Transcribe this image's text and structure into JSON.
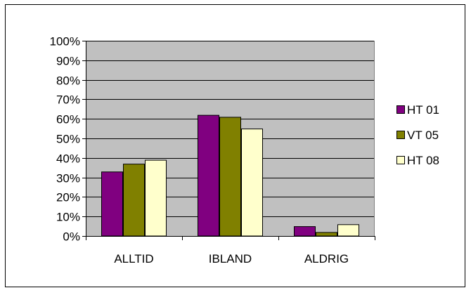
{
  "chart_data": {
    "type": "bar",
    "title": "",
    "xlabel": "",
    "ylabel": "",
    "categories": [
      "ALLTID",
      "IBLAND",
      "ALDRIG"
    ],
    "series": [
      {
        "name": "HT 01",
        "values": [
          33,
          62,
          5
        ],
        "color": "#800080"
      },
      {
        "name": "VT 05",
        "values": [
          37,
          61,
          2
        ],
        "color": "#808000"
      },
      {
        "name": "HT 08",
        "values": [
          39,
          55,
          6
        ],
        "color": "#ffffcc"
      }
    ],
    "ylim": [
      0,
      100
    ],
    "yticks": [
      "0%",
      "10%",
      "20%",
      "30%",
      "40%",
      "50%",
      "60%",
      "70%",
      "80%",
      "90%",
      "100%"
    ],
    "grid": true,
    "plot_background": "#c0c0c0",
    "legend_position": "right"
  }
}
